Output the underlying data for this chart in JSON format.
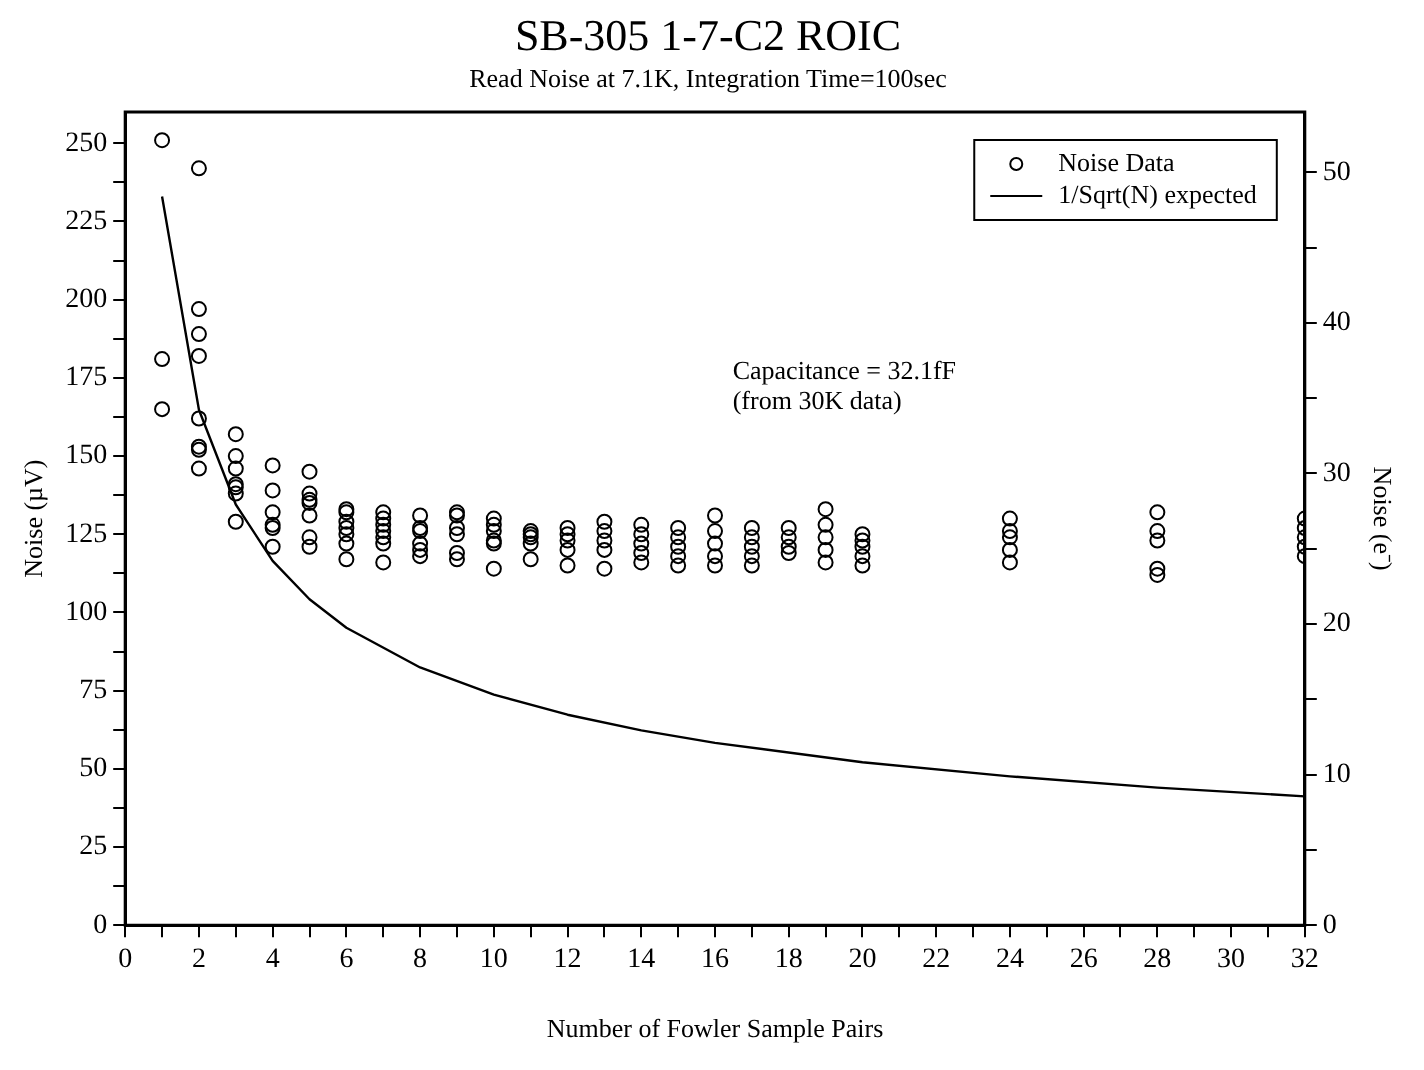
{
  "chart_data": {
    "type": "scatter",
    "title": "SB-305 1-7-C2 ROIC",
    "subtitle": "Read Noise at 7.1K, Integration Time=100sec",
    "xlabel": "Number of Fowler Sample Pairs",
    "ylabel": "Noise (µV)",
    "y2label": "Noise (e⁻)",
    "annotations": [
      "Capacitance = 32.1fF",
      "(from 30K data)"
    ],
    "xlim": [
      0,
      32
    ],
    "xticks": [
      0,
      {
        "value": 1,
        "label": null
      },
      2,
      {
        "value": 3,
        "label": null
      },
      4,
      {
        "value": 5,
        "label": null
      },
      6,
      {
        "value": 7,
        "label": null
      },
      8,
      {
        "value": 9,
        "label": null
      },
      10,
      {
        "value": 11,
        "label": null
      },
      12,
      {
        "value": 13,
        "label": null
      },
      14,
      {
        "value": 15,
        "label": null
      },
      16,
      {
        "value": 17,
        "label": null
      },
      18,
      {
        "value": 19,
        "label": null
      },
      20,
      {
        "value": 21,
        "label": null
      },
      22,
      {
        "value": 23,
        "label": null
      },
      24,
      {
        "value": 25,
        "label": null
      },
      26,
      {
        "value": 27,
        "label": null
      },
      28,
      {
        "value": 29,
        "label": null
      },
      30,
      {
        "value": 31,
        "label": null
      },
      32
    ],
    "ylim": [
      0,
      260
    ],
    "yticks": [
      0,
      {
        "value": 12.5,
        "label": null
      },
      25,
      {
        "value": 37.5,
        "label": null
      },
      50,
      {
        "value": 62.5,
        "label": null
      },
      75,
      {
        "value": 87.5,
        "label": null
      },
      100,
      {
        "value": 112.5,
        "label": null
      },
      125,
      {
        "value": 137.5,
        "label": null
      },
      150,
      {
        "value": 162.5,
        "label": null
      },
      175,
      {
        "value": 187.5,
        "label": null
      },
      200,
      {
        "value": 212.5,
        "label": null
      },
      225,
      {
        "value": 237.5,
        "label": null
      },
      250
    ],
    "y2lim": [
      0,
      54
    ],
    "y2ticks": [
      0,
      {
        "value": 5,
        "label": null
      },
      10,
      {
        "value": 15,
        "label": null
      },
      20,
      {
        "value": 25,
        "label": null
      },
      30,
      {
        "value": 35,
        "label": null
      },
      40,
      {
        "value": 45,
        "label": null
      },
      50
    ],
    "grid": false,
    "legend": "top right",
    "series": [
      {
        "name": "Noise Data",
        "type": "scatter",
        "marker": "circle",
        "color": "#000000",
        "x": [
          1,
          1,
          1,
          2,
          2,
          2,
          2,
          2,
          2,
          2,
          2,
          3,
          3,
          3,
          3,
          3,
          3,
          3,
          4,
          4,
          4,
          4,
          4,
          4,
          5,
          5,
          5,
          5,
          5,
          5,
          5,
          6,
          6,
          6,
          6,
          6,
          6,
          6,
          7,
          7,
          7,
          7,
          7,
          7,
          7,
          8,
          8,
          8,
          8,
          8,
          8,
          9,
          9,
          9,
          9,
          9,
          9,
          10,
          10,
          10,
          10,
          10,
          10,
          11,
          11,
          11,
          11,
          11,
          12,
          12,
          12,
          12,
          12,
          13,
          13,
          13,
          13,
          13,
          14,
          14,
          14,
          14,
          14,
          15,
          15,
          15,
          15,
          15,
          16,
          16,
          16,
          16,
          16,
          17,
          17,
          17,
          17,
          17,
          18,
          18,
          18,
          18,
          19,
          19,
          19,
          19,
          19,
          20,
          20,
          20,
          20,
          20,
          24,
          24,
          24,
          24,
          24,
          28,
          28,
          28,
          28,
          28,
          32,
          32,
          32,
          32,
          32
        ],
        "values": [
          251,
          181,
          165,
          242,
          197,
          189,
          182,
          162,
          153,
          152,
          146,
          157,
          150,
          146,
          141,
          140,
          138,
          129,
          147,
          139,
          132,
          128,
          127,
          121,
          145,
          138,
          136,
          135,
          131,
          124,
          121,
          133,
          132,
          129,
          127,
          125,
          122,
          117,
          132,
          130,
          128,
          126,
          124,
          122,
          116,
          131,
          127,
          126,
          122,
          120,
          118,
          132,
          131,
          127,
          125,
          119,
          117,
          130,
          128,
          126,
          123,
          122,
          114,
          126,
          125,
          124,
          122,
          117,
          127,
          125,
          123,
          120,
          115,
          129,
          126,
          123,
          120,
          114,
          128,
          125,
          122,
          119,
          116,
          127,
          124,
          121,
          118,
          115,
          131,
          126,
          122,
          118,
          115,
          127,
          124,
          121,
          118,
          115,
          127,
          124,
          121,
          119,
          133,
          128,
          124,
          120,
          116,
          125,
          123,
          121,
          118,
          115,
          130,
          126,
          124,
          120,
          116,
          132,
          126,
          123,
          114,
          112,
          130,
          127,
          124,
          121,
          118
        ]
      },
      {
        "name": "1/Sqrt(N) expected",
        "type": "line",
        "marker": "none",
        "line_style": "solid",
        "color": "#000000",
        "x": [
          1,
          2,
          3,
          4,
          5,
          6,
          8,
          10,
          12,
          14,
          16,
          20,
          24,
          28,
          32
        ],
        "values": [
          233,
          164.8,
          134.5,
          116.5,
          104.2,
          95.1,
          82.4,
          73.7,
          67.3,
          62.3,
          58.3,
          52.1,
          47.6,
          44.0,
          41.2
        ]
      }
    ]
  }
}
